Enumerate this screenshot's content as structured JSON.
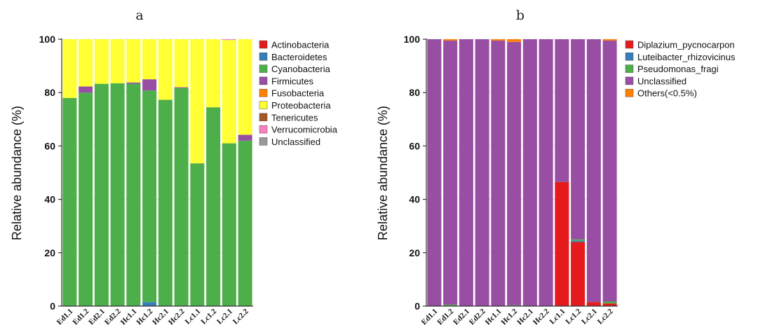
{
  "chart_data": [
    {
      "panel": "a",
      "type": "bar",
      "stacked": true,
      "ylabel": "Relative abundance (%)",
      "ylim": [
        0,
        100
      ],
      "yticks": [
        0,
        20,
        40,
        60,
        80,
        100
      ],
      "grid": true,
      "legend_position": "right",
      "categories": [
        "Ed1.1",
        "Ed1.2",
        "Ed2.1",
        "Ed2.2",
        "Hc1.1",
        "Hc1.2",
        "Hc2.1",
        "Hc2.2",
        "Lc1.1",
        "Lc1.2",
        "Lc2.1",
        "Lc2.2"
      ],
      "series": [
        {
          "name": "Actinobacteria",
          "color": "#e41a1c",
          "values": [
            0,
            0,
            0,
            0,
            0,
            0,
            0,
            0,
            0,
            0,
            0,
            0
          ]
        },
        {
          "name": "Bacteroidetes",
          "color": "#377eb8",
          "values": [
            0,
            0,
            0,
            0,
            0,
            1.5,
            0,
            0,
            0,
            0,
            0,
            0
          ]
        },
        {
          "name": "Cyanobacteria",
          "color": "#4daf4a",
          "values": [
            78,
            80,
            83.3,
            83.5,
            83.3,
            79.3,
            77.3,
            81.7,
            53.5,
            74.5,
            61,
            62
          ]
        },
        {
          "name": "Firmicutes",
          "color": "#984ea3",
          "values": [
            0,
            2.3,
            0,
            0,
            0.5,
            4.2,
            0,
            0.3,
            0,
            0,
            0,
            2.2
          ]
        },
        {
          "name": "Fusobacteria",
          "color": "#ff7f00",
          "values": [
            0,
            0,
            0,
            0,
            0,
            0,
            0,
            0,
            0,
            0,
            0,
            0
          ]
        },
        {
          "name": "Proteobacteria",
          "color": "#ffff33",
          "values": [
            22,
            17.7,
            16.7,
            16.5,
            16.2,
            15,
            22.7,
            18,
            46.5,
            25.5,
            38.7,
            35.8
          ]
        },
        {
          "name": "Tenericutes",
          "color": "#a65628",
          "values": [
            0,
            0,
            0,
            0,
            0,
            0,
            0,
            0,
            0,
            0,
            0,
            0
          ]
        },
        {
          "name": "Verrucomicrobia",
          "color": "#f781bf",
          "values": [
            0,
            0,
            0,
            0,
            0,
            0,
            0,
            0,
            0,
            0,
            0.3,
            0
          ]
        },
        {
          "name": "Unclassified",
          "color": "#999999",
          "values": [
            0,
            0,
            0,
            0,
            0,
            0,
            0,
            0,
            0,
            0,
            0,
            0
          ]
        }
      ]
    },
    {
      "panel": "b",
      "type": "bar",
      "stacked": true,
      "ylabel": "Relative abundance (%)",
      "ylim": [
        0,
        100
      ],
      "yticks": [
        0,
        20,
        40,
        60,
        80,
        100
      ],
      "grid": true,
      "legend_position": "right",
      "categories": [
        "Ed1.1",
        "Ed1.2",
        "Ed2.1",
        "Ed2.2",
        "Hc1.1",
        "Hc1.2",
        "Hc2.1",
        "Hc2.2",
        "Lc1.1",
        "Lc1.2",
        "Lc2.1",
        "Lc2.2"
      ],
      "series": [
        {
          "name": "Diplazium_pycnocarpon",
          "color": "#e41a1c",
          "values": [
            0,
            0,
            0,
            0,
            0,
            0,
            0,
            0,
            46.5,
            24,
            1.5,
            1
          ]
        },
        {
          "name": "Luteibacter_rhizovicinus",
          "color": "#377eb8",
          "values": [
            0,
            0,
            0,
            0,
            0,
            0,
            0,
            0,
            0,
            0.5,
            0,
            0
          ]
        },
        {
          "name": "Pseudomonas_fragi",
          "color": "#4daf4a",
          "values": [
            0,
            0.5,
            0,
            0,
            0,
            0.3,
            0,
            0,
            0,
            0.5,
            0,
            0.7
          ]
        },
        {
          "name": "Unclassified",
          "color": "#984ea3",
          "values": [
            100,
            99,
            100,
            100,
            99.5,
            98.7,
            100,
            100,
            53.5,
            75,
            98.5,
            97.8
          ]
        },
        {
          "name": "Others(<0.5%)",
          "color": "#ff7f00",
          "values": [
            0,
            0.5,
            0,
            0,
            0.5,
            1,
            0,
            0,
            0,
            0,
            0,
            0.5
          ]
        }
      ]
    }
  ]
}
